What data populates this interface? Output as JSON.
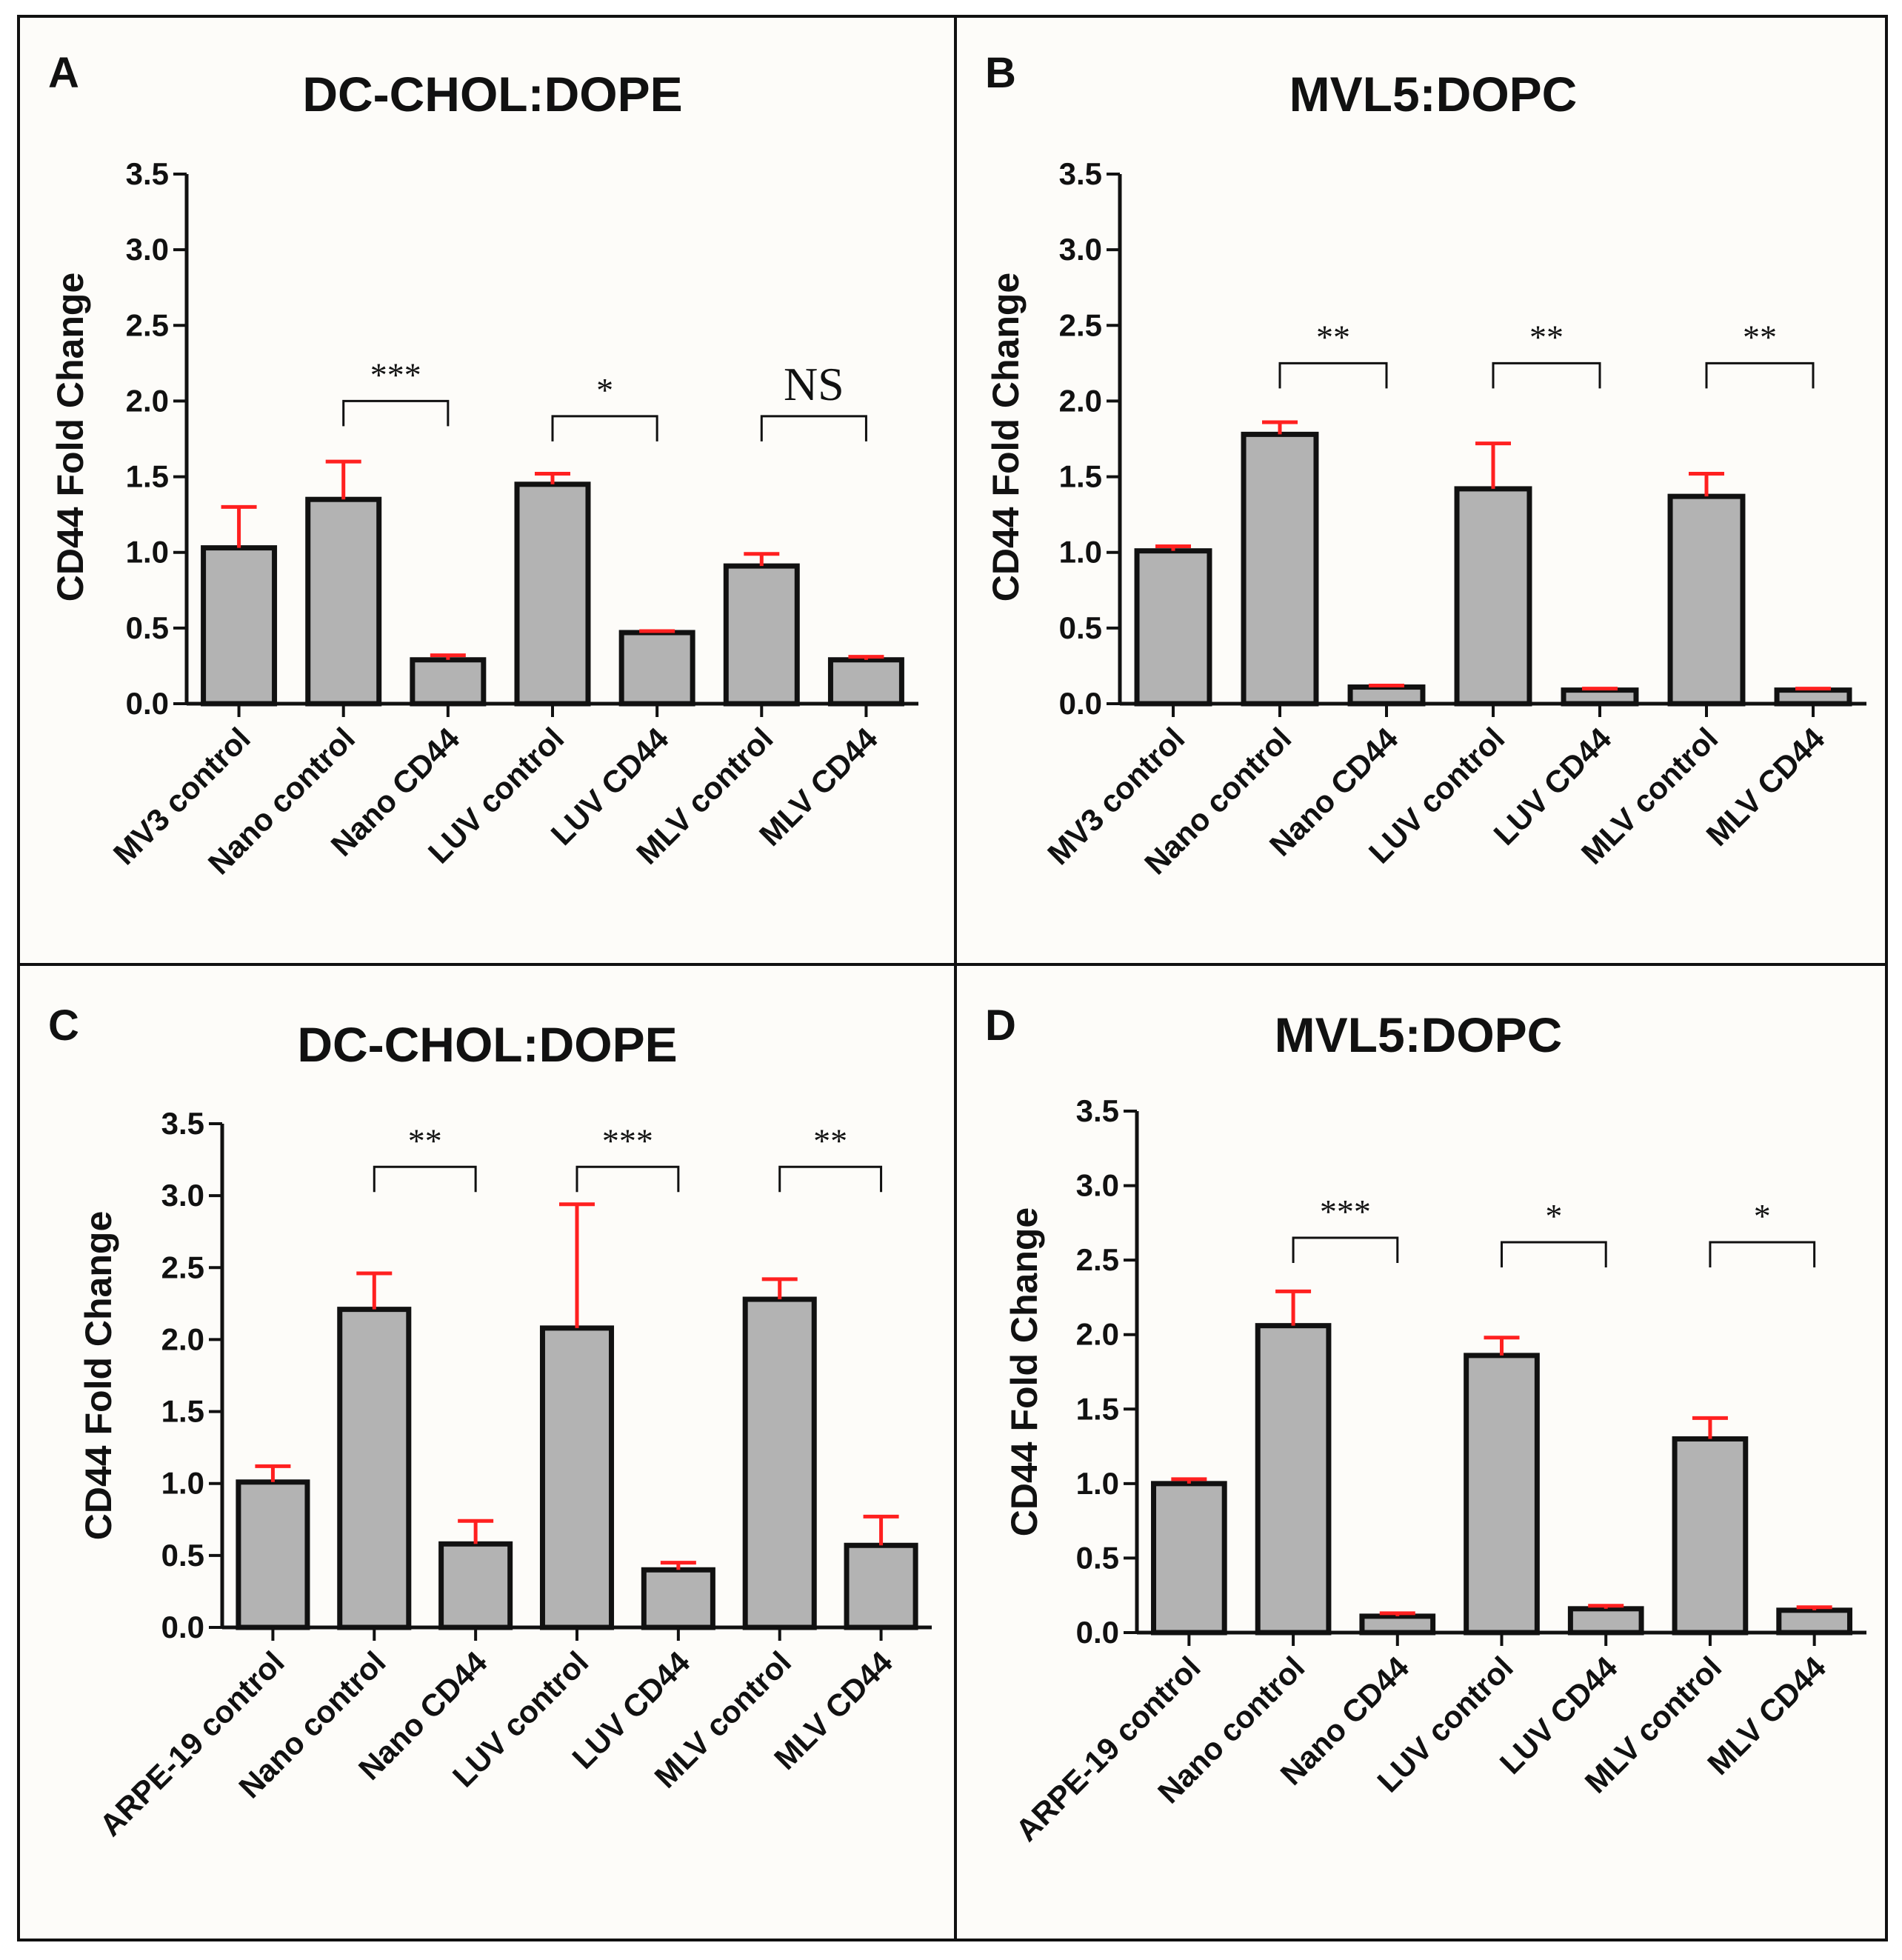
{
  "figure": {
    "background": "#fdfcf9",
    "border_color": "#111111",
    "bar_fill": "#b3b3b3",
    "bar_stroke": "#111111",
    "error_color": "#ff2020"
  },
  "chart_data": [
    {
      "type": "bar",
      "letter": "A",
      "title": "DC-CHOL:DOPE",
      "ylabel": "CD44 Fold Change",
      "ylim": [
        0,
        3.5
      ],
      "yticks": [
        "0.0",
        "0.5",
        "1.0",
        "1.5",
        "2.0",
        "2.5",
        "3.0",
        "3.5"
      ],
      "categories": [
        "MV3 control",
        "Nano control",
        "Nano CD44",
        "LUV control",
        "LUV CD44",
        "MLV control",
        "MLV CD44"
      ],
      "values": [
        1.03,
        1.35,
        0.29,
        1.45,
        0.47,
        0.91,
        0.29
      ],
      "errors": [
        0.27,
        0.25,
        0.03,
        0.07,
        0.01,
        0.08,
        0.02
      ],
      "significance": [
        {
          "from": 1,
          "to": 2,
          "label": "***",
          "y": 2.0
        },
        {
          "from": 3,
          "to": 4,
          "label": "*",
          "y": 1.9
        },
        {
          "from": 5,
          "to": 6,
          "label": "NS",
          "y": 1.9
        }
      ]
    },
    {
      "type": "bar",
      "letter": "B",
      "title": "MVL5:DOPC",
      "ylabel": "CD44 Fold Change",
      "ylim": [
        0,
        3.5
      ],
      "yticks": [
        "0.0",
        "0.5",
        "1.0",
        "1.5",
        "2.0",
        "2.5",
        "3.0",
        "3.5"
      ],
      "categories": [
        "MV3 control",
        "Nano control",
        "Nano CD44",
        "LUV control",
        "LUV CD44",
        "MLV control",
        "MLV CD44"
      ],
      "values": [
        1.01,
        1.78,
        0.11,
        1.42,
        0.09,
        1.37,
        0.09
      ],
      "errors": [
        0.03,
        0.08,
        0.01,
        0.3,
        0.01,
        0.15,
        0.01
      ],
      "significance": [
        {
          "from": 1,
          "to": 2,
          "label": "**",
          "y": 2.25
        },
        {
          "from": 3,
          "to": 4,
          "label": "**",
          "y": 2.25
        },
        {
          "from": 5,
          "to": 6,
          "label": "**",
          "y": 2.25
        }
      ]
    },
    {
      "type": "bar",
      "letter": "C",
      "title": "DC-CHOL:DOPE",
      "ylabel": "CD44 Fold Change",
      "ylim": [
        0,
        3.5
      ],
      "yticks": [
        "0.0",
        "0.5",
        "1.0",
        "1.5",
        "2.0",
        "2.5",
        "3.0",
        "3.5"
      ],
      "categories": [
        "ARPE-19 control",
        "Nano control",
        "Nano CD44",
        "LUV control",
        "LUV CD44",
        "MLV control",
        "MLV CD44"
      ],
      "values": [
        1.01,
        2.21,
        0.58,
        2.08,
        0.4,
        2.28,
        0.57
      ],
      "errors": [
        0.11,
        0.25,
        0.16,
        0.86,
        0.05,
        0.14,
        0.2
      ],
      "significance": [
        {
          "from": 1,
          "to": 2,
          "label": "**",
          "y": 3.2
        },
        {
          "from": 3,
          "to": 4,
          "label": "***",
          "y": 3.2
        },
        {
          "from": 5,
          "to": 6,
          "label": "**",
          "y": 3.2
        }
      ]
    },
    {
      "type": "bar",
      "letter": "D",
      "title": "MVL5:DOPC",
      "ylabel": "CD44 Fold Change",
      "ylim": [
        0,
        3.5
      ],
      "yticks": [
        "0.0",
        "0.5",
        "1.0",
        "1.5",
        "2.0",
        "2.5",
        "3.0",
        "3.5"
      ],
      "categories": [
        "ARPE-19 control",
        "Nano control",
        "Nano CD44",
        "LUV control",
        "LUV CD44",
        "MLV control",
        "MLV CD44"
      ],
      "values": [
        1.0,
        2.06,
        0.11,
        1.86,
        0.16,
        1.3,
        0.15
      ],
      "errors": [
        0.03,
        0.23,
        0.02,
        0.12,
        0.02,
        0.14,
        0.02
      ],
      "significance": [
        {
          "from": 1,
          "to": 2,
          "label": "***",
          "y": 2.65
        },
        {
          "from": 3,
          "to": 4,
          "label": "*",
          "y": 2.62
        },
        {
          "from": 5,
          "to": 6,
          "label": "*",
          "y": 2.62
        }
      ]
    }
  ]
}
